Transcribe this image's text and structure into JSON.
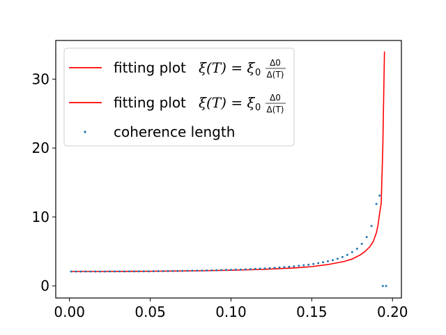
{
  "chart_data": {
    "type": "line",
    "xlim": [
      -0.0085,
      0.2055
    ],
    "ylim": [
      -1.75,
      35.6
    ],
    "xticks": [
      0.0,
      0.05,
      0.1,
      0.15,
      0.2
    ],
    "xtick_labels": [
      "0.00",
      "0.05",
      "0.10",
      "0.15",
      "0.20"
    ],
    "yticks": [
      0,
      10,
      20,
      30
    ],
    "ytick_labels": [
      "0",
      "10",
      "20",
      "30"
    ],
    "grid": false,
    "legend_position": "upper-left",
    "series": [
      {
        "name": "fitting plot ξ(T) = ξ0 Δ0/Δ(T)",
        "kind": "line",
        "color": "#ff0000",
        "x": [
          0.001,
          0.02,
          0.04,
          0.06,
          0.08,
          0.1,
          0.12,
          0.14,
          0.15,
          0.16,
          0.17,
          0.175,
          0.18,
          0.183,
          0.186,
          0.188,
          0.19,
          0.191,
          0.192,
          0.193,
          0.194,
          0.195
        ],
        "y": [
          2.1,
          2.1,
          2.12,
          2.15,
          2.2,
          2.28,
          2.4,
          2.62,
          2.8,
          3.1,
          3.55,
          3.9,
          4.5,
          5.0,
          5.7,
          6.4,
          7.7,
          8.8,
          10.5,
          12.0,
          20.0,
          34.0
        ]
      },
      {
        "name": "fitting plot ξ(T) = ξ0 Δ0/Δ(T)",
        "kind": "line",
        "color": "#ff0000",
        "x": [],
        "y": []
      },
      {
        "name": "coherence length",
        "kind": "scatter",
        "color": "#1f77b4",
        "x": [
          0.001,
          0.004,
          0.007,
          0.01,
          0.013,
          0.016,
          0.019,
          0.022,
          0.025,
          0.028,
          0.031,
          0.034,
          0.037,
          0.04,
          0.043,
          0.046,
          0.049,
          0.052,
          0.055,
          0.058,
          0.061,
          0.064,
          0.067,
          0.07,
          0.073,
          0.076,
          0.079,
          0.082,
          0.085,
          0.088,
          0.091,
          0.094,
          0.097,
          0.1,
          0.103,
          0.106,
          0.109,
          0.112,
          0.115,
          0.118,
          0.121,
          0.124,
          0.127,
          0.13,
          0.133,
          0.136,
          0.139,
          0.142,
          0.145,
          0.148,
          0.151,
          0.154,
          0.157,
          0.16,
          0.163,
          0.166,
          0.169,
          0.172,
          0.175,
          0.178,
          0.181,
          0.184,
          0.187,
          0.19,
          0.192,
          0.194,
          0.196
        ],
        "y": [
          2.1,
          2.1,
          2.1,
          2.1,
          2.1,
          2.1,
          2.1,
          2.1,
          2.11,
          2.11,
          2.11,
          2.11,
          2.12,
          2.12,
          2.12,
          2.13,
          2.13,
          2.14,
          2.15,
          2.15,
          2.16,
          2.17,
          2.18,
          2.19,
          2.2,
          2.21,
          2.22,
          2.23,
          2.25,
          2.26,
          2.28,
          2.3,
          2.32,
          2.34,
          2.36,
          2.38,
          2.41,
          2.44,
          2.47,
          2.5,
          2.54,
          2.58,
          2.62,
          2.67,
          2.72,
          2.78,
          2.85,
          2.92,
          3.0,
          3.09,
          3.19,
          3.3,
          3.43,
          3.58,
          3.75,
          3.95,
          4.2,
          4.5,
          4.9,
          5.4,
          6.1,
          7.1,
          8.7,
          11.9,
          13.1,
          0.0,
          0.0
        ]
      }
    ]
  }
}
